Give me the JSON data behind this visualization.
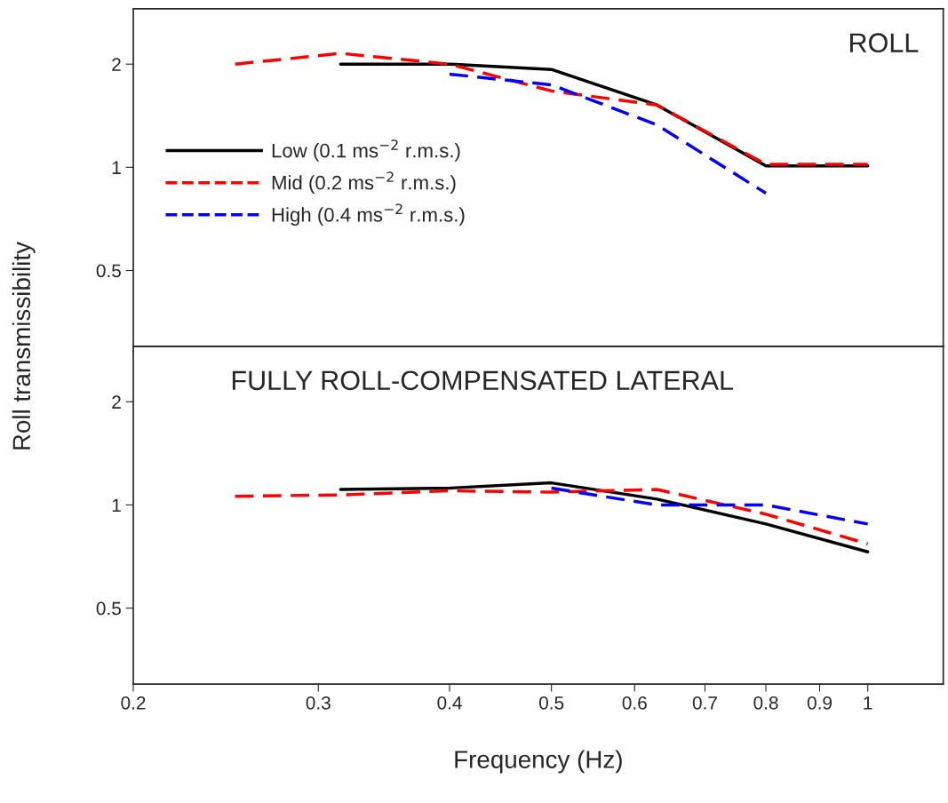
{
  "chart_data": [
    {
      "type": "line",
      "title": "ROLL",
      "ylabel": "Roll transmissibility",
      "log": "xy",
      "xlim": [
        0.2,
        1.18
      ],
      "ylim": [
        0.3,
        2.9
      ],
      "xticks": [
        0.2,
        0.3,
        0.4,
        0.5,
        0.6,
        0.7,
        0.8,
        0.9,
        1
      ],
      "yticks": [
        0.5,
        1,
        2
      ],
      "tick_labels": "y",
      "grid": false,
      "legend": "center left",
      "series": [
        {
          "name": "Low (0.1 ms$^{−2}$ r.m.s.)",
          "color": "#000000",
          "line_style": "solid",
          "x": [
            0.315,
            0.4,
            0.5,
            0.63,
            0.8,
            1.0
          ],
          "values": [
            2.0,
            2.0,
            1.93,
            1.52,
            1.01,
            1.01
          ]
        },
        {
          "name": "Mid (0.2 ms$^{−2}$ r.m.s.)",
          "color": "#ff0000",
          "line_style": "dashed",
          "x": [
            0.25,
            0.315,
            0.4,
            0.5,
            0.63,
            0.8,
            1.0
          ],
          "values": [
            2.0,
            2.15,
            2.0,
            1.67,
            1.52,
            1.02,
            1.02
          ]
        },
        {
          "name": "High (0.4 ms$^{−2}$ r.m.s.)",
          "color": "#0000ff",
          "line_style": "dashed",
          "x": [
            0.4,
            0.5,
            0.63,
            0.8
          ],
          "values": [
            1.87,
            1.74,
            1.33,
            0.84
          ]
        }
      ]
    },
    {
      "type": "line",
      "title": "FULLY ROLL-COMPENSATED LATERAL",
      "xlabel": "Frequency (Hz)",
      "log": "xy",
      "xlim": [
        0.2,
        1.18
      ],
      "ylim": [
        0.3,
        2.9
      ],
      "xticks": [
        0.2,
        0.3,
        0.4,
        0.5,
        0.6,
        0.7,
        0.8,
        0.9,
        1
      ],
      "yticks": [
        0.5,
        1,
        2
      ],
      "grid": false,
      "series": [
        {
          "color": "#000000",
          "line_style": "solid",
          "x": [
            0.315,
            0.4,
            0.5,
            0.63,
            0.8,
            1.0
          ],
          "values": [
            1.11,
            1.12,
            1.16,
            1.04,
            0.88,
            0.73
          ]
        },
        {
          "color": "#ff0000",
          "line_style": "dashed",
          "x": [
            0.25,
            0.315,
            0.4,
            0.5,
            0.63,
            0.8,
            1.0
          ],
          "values": [
            1.06,
            1.07,
            1.1,
            1.09,
            1.11,
            0.94,
            0.77
          ]
        },
        {
          "color": "#0000ff",
          "line_style": "dashed",
          "x": [
            0.5,
            0.63,
            0.8,
            1.0
          ],
          "values": [
            1.12,
            1.0,
            1.0,
            0.88
          ]
        }
      ]
    }
  ]
}
